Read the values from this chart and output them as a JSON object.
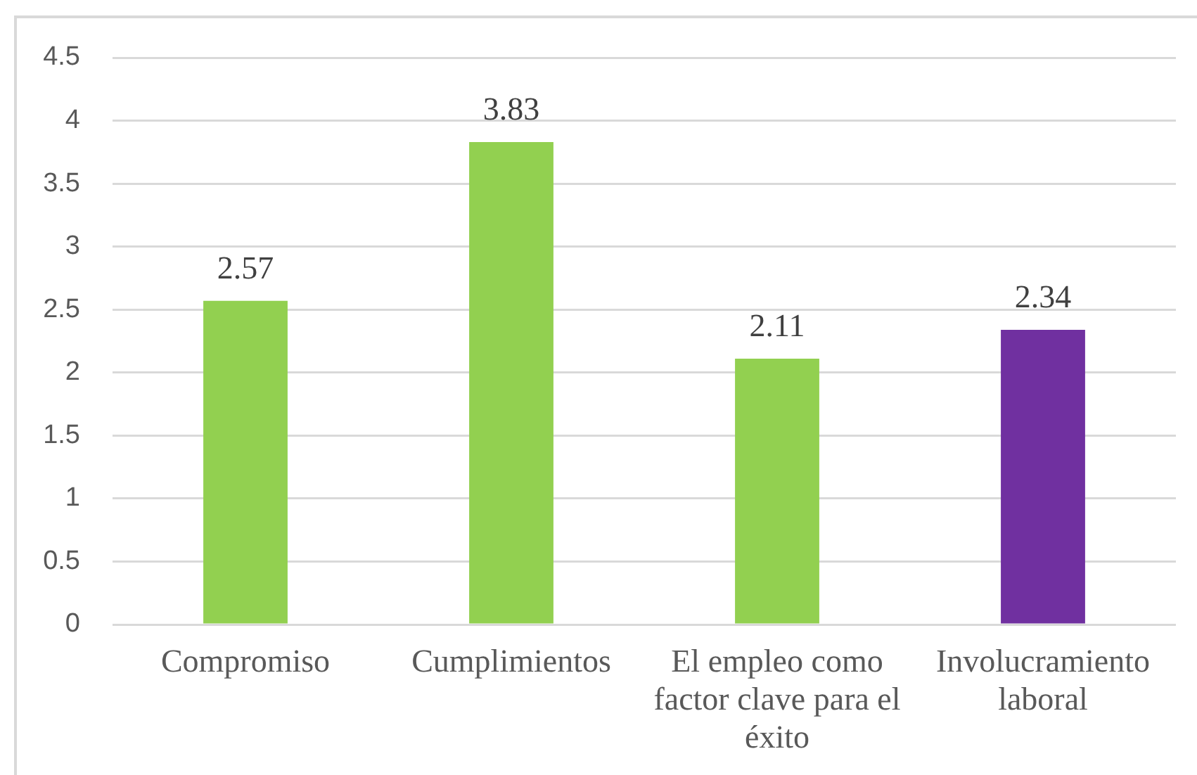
{
  "chart_data": {
    "type": "bar",
    "categories": [
      "Compromiso",
      "Cumplimientos",
      "El empleo como factor clave para el éxito",
      "Involucramiento laboral"
    ],
    "values": [
      2.57,
      3.83,
      2.11,
      2.34
    ],
    "colors": [
      "#92d050",
      "#92d050",
      "#92d050",
      "#7030a0"
    ],
    "ylim": [
      0,
      4.5
    ],
    "yticks": [
      0,
      0.5,
      1,
      1.5,
      2,
      2.5,
      3,
      3.5,
      4,
      4.5
    ],
    "grid": "y",
    "legend": false,
    "data_labels": true
  }
}
